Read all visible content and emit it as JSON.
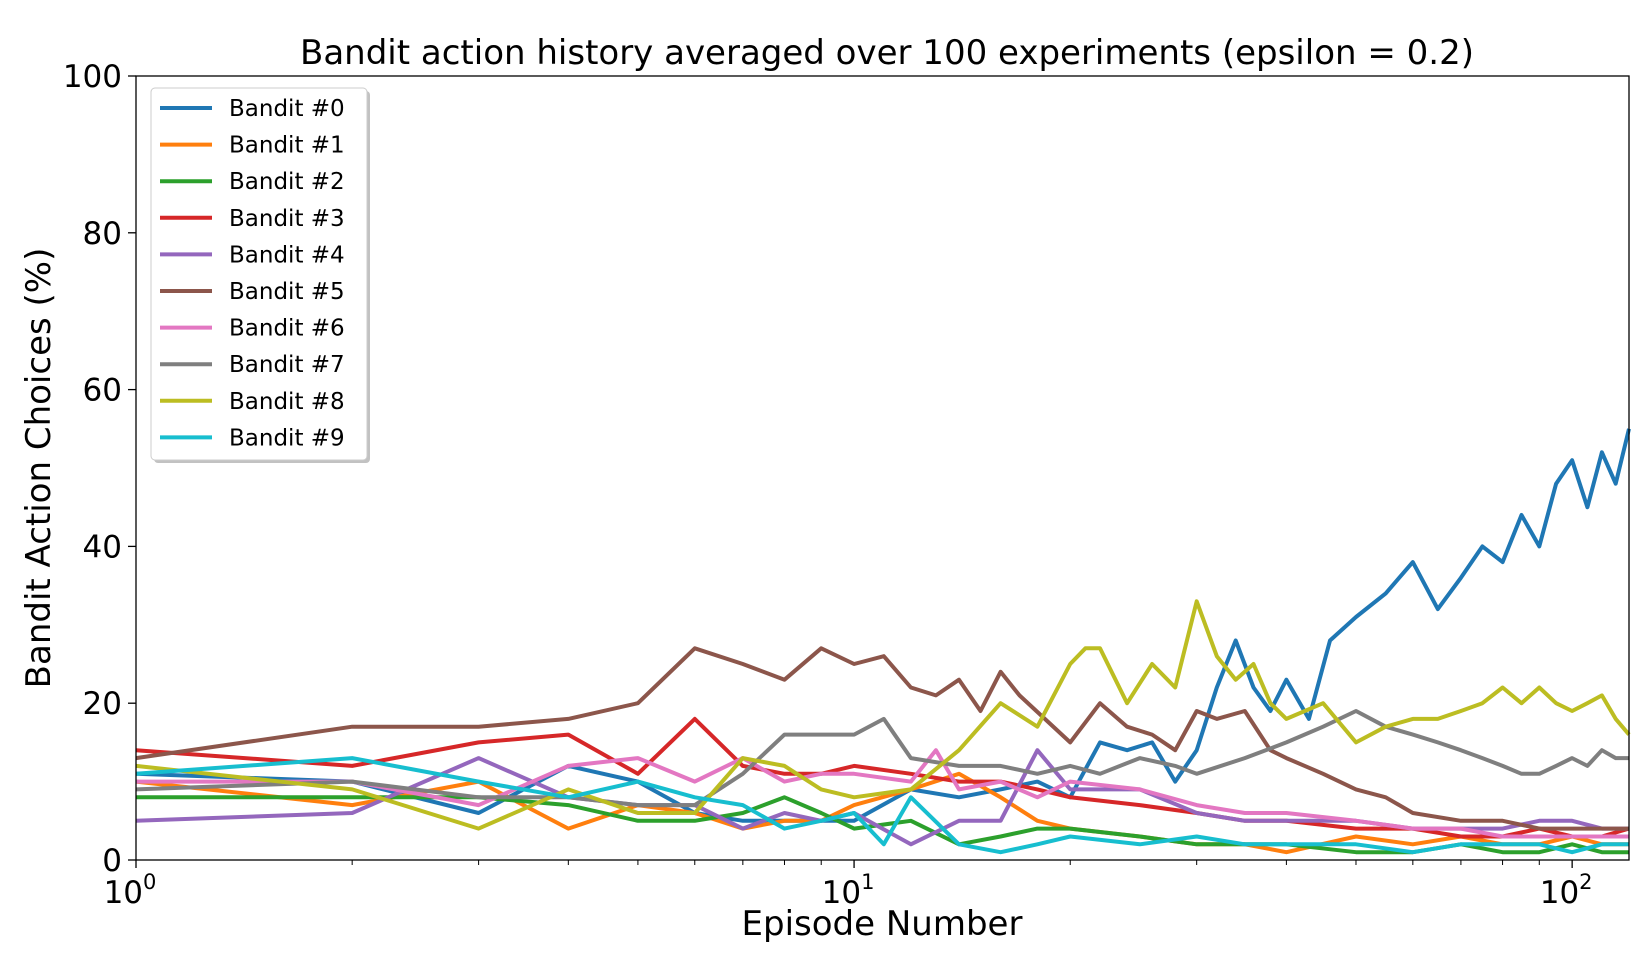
{
  "chart_data": {
    "type": "line",
    "title": "Bandit action history averaged over 100 experiments (epsilon = 0.2)",
    "xlabel": "Episode Number",
    "ylabel": "Bandit Action Choices (%)",
    "xscale": "log",
    "xlim": [
      1,
      120
    ],
    "ylim": [
      0,
      100
    ],
    "yticks": [
      0,
      20,
      40,
      60,
      80,
      100
    ],
    "xticks": [
      {
        "value": 1,
        "base": "10",
        "exp": "0"
      },
      {
        "value": 10,
        "base": "10",
        "exp": "1"
      },
      {
        "value": 100,
        "base": "10",
        "exp": "2"
      }
    ],
    "grid": false,
    "legend_position": "top-left",
    "series": [
      {
        "name": "Bandit #0",
        "color": "#1f77b4",
        "points": [
          [
            1,
            11
          ],
          [
            2,
            10
          ],
          [
            3,
            6
          ],
          [
            4,
            12
          ],
          [
            5,
            10
          ],
          [
            6,
            6
          ],
          [
            7,
            5
          ],
          [
            8,
            5
          ],
          [
            9,
            5
          ],
          [
            10,
            5
          ],
          [
            12,
            9
          ],
          [
            14,
            8
          ],
          [
            16,
            9
          ],
          [
            18,
            10
          ],
          [
            20,
            8
          ],
          [
            22,
            15
          ],
          [
            24,
            14
          ],
          [
            26,
            15
          ],
          [
            28,
            10
          ],
          [
            30,
            14
          ],
          [
            32,
            22
          ],
          [
            34,
            28
          ],
          [
            36,
            22
          ],
          [
            38,
            19
          ],
          [
            40,
            23
          ],
          [
            43,
            18
          ],
          [
            46,
            28
          ],
          [
            50,
            31
          ],
          [
            55,
            34
          ],
          [
            60,
            38
          ],
          [
            65,
            32
          ],
          [
            70,
            36
          ],
          [
            75,
            40
          ],
          [
            80,
            38
          ],
          [
            85,
            44
          ],
          [
            90,
            40
          ],
          [
            95,
            48
          ],
          [
            100,
            51
          ],
          [
            105,
            45
          ],
          [
            110,
            52
          ],
          [
            115,
            48
          ],
          [
            120,
            55
          ]
        ]
      },
      {
        "name": "Bandit #1",
        "color": "#ff7f0e",
        "points": [
          [
            1,
            10
          ],
          [
            2,
            7
          ],
          [
            3,
            10
          ],
          [
            4,
            4
          ],
          [
            5,
            7
          ],
          [
            6,
            6
          ],
          [
            7,
            4
          ],
          [
            8,
            5
          ],
          [
            9,
            5
          ],
          [
            10,
            7
          ],
          [
            12,
            9
          ],
          [
            14,
            11
          ],
          [
            16,
            8
          ],
          [
            18,
            5
          ],
          [
            20,
            4
          ],
          [
            25,
            3
          ],
          [
            30,
            2
          ],
          [
            35,
            2
          ],
          [
            40,
            1
          ],
          [
            50,
            3
          ],
          [
            60,
            2
          ],
          [
            70,
            3
          ],
          [
            80,
            2
          ],
          [
            90,
            2
          ],
          [
            100,
            3
          ],
          [
            110,
            2
          ],
          [
            120,
            2
          ]
        ]
      },
      {
        "name": "Bandit #2",
        "color": "#2ca02c",
        "points": [
          [
            1,
            8
          ],
          [
            2,
            8
          ],
          [
            3,
            8
          ],
          [
            4,
            7
          ],
          [
            5,
            5
          ],
          [
            6,
            5
          ],
          [
            7,
            6
          ],
          [
            8,
            8
          ],
          [
            9,
            6
          ],
          [
            10,
            4
          ],
          [
            12,
            5
          ],
          [
            14,
            2
          ],
          [
            16,
            3
          ],
          [
            18,
            4
          ],
          [
            20,
            4
          ],
          [
            25,
            3
          ],
          [
            30,
            2
          ],
          [
            35,
            2
          ],
          [
            40,
            2
          ],
          [
            50,
            1
          ],
          [
            60,
            1
          ],
          [
            70,
            2
          ],
          [
            80,
            1
          ],
          [
            90,
            1
          ],
          [
            100,
            2
          ],
          [
            110,
            1
          ],
          [
            120,
            1
          ]
        ]
      },
      {
        "name": "Bandit #3",
        "color": "#d62728",
        "points": [
          [
            1,
            14
          ],
          [
            2,
            12
          ],
          [
            3,
            15
          ],
          [
            4,
            16
          ],
          [
            5,
            11
          ],
          [
            6,
            18
          ],
          [
            7,
            12
          ],
          [
            8,
            11
          ],
          [
            9,
            11
          ],
          [
            10,
            12
          ],
          [
            12,
            11
          ],
          [
            14,
            10
          ],
          [
            16,
            10
          ],
          [
            18,
            9
          ],
          [
            20,
            8
          ],
          [
            25,
            7
          ],
          [
            30,
            6
          ],
          [
            35,
            5
          ],
          [
            40,
            5
          ],
          [
            50,
            4
          ],
          [
            60,
            4
          ],
          [
            70,
            3
          ],
          [
            80,
            3
          ],
          [
            90,
            4
          ],
          [
            100,
            3
          ],
          [
            110,
            3
          ],
          [
            120,
            4
          ]
        ]
      },
      {
        "name": "Bandit #4",
        "color": "#9467bd",
        "points": [
          [
            1,
            5
          ],
          [
            2,
            6
          ],
          [
            3,
            13
          ],
          [
            4,
            8
          ],
          [
            5,
            7
          ],
          [
            6,
            7
          ],
          [
            7,
            4
          ],
          [
            8,
            6
          ],
          [
            9,
            5
          ],
          [
            10,
            6
          ],
          [
            12,
            2
          ],
          [
            14,
            5
          ],
          [
            16,
            5
          ],
          [
            18,
            14
          ],
          [
            20,
            9
          ],
          [
            25,
            9
          ],
          [
            30,
            6
          ],
          [
            35,
            5
          ],
          [
            40,
            5
          ],
          [
            50,
            5
          ],
          [
            60,
            4
          ],
          [
            70,
            4
          ],
          [
            80,
            4
          ],
          [
            90,
            5
          ],
          [
            100,
            5
          ],
          [
            110,
            4
          ],
          [
            120,
            4
          ]
        ]
      },
      {
        "name": "Bandit #5",
        "color": "#8c564b",
        "points": [
          [
            1,
            13
          ],
          [
            2,
            17
          ],
          [
            3,
            17
          ],
          [
            4,
            18
          ],
          [
            5,
            20
          ],
          [
            6,
            27
          ],
          [
            7,
            25
          ],
          [
            8,
            23
          ],
          [
            9,
            27
          ],
          [
            10,
            25
          ],
          [
            11,
            26
          ],
          [
            12,
            22
          ],
          [
            13,
            21
          ],
          [
            14,
            23
          ],
          [
            15,
            19
          ],
          [
            16,
            24
          ],
          [
            17,
            21
          ],
          [
            20,
            15
          ],
          [
            22,
            20
          ],
          [
            24,
            17
          ],
          [
            26,
            16
          ],
          [
            28,
            14
          ],
          [
            30,
            19
          ],
          [
            32,
            18
          ],
          [
            35,
            19
          ],
          [
            38,
            14
          ],
          [
            40,
            13
          ],
          [
            45,
            11
          ],
          [
            50,
            9
          ],
          [
            55,
            8
          ],
          [
            60,
            6
          ],
          [
            70,
            5
          ],
          [
            80,
            5
          ],
          [
            90,
            4
          ],
          [
            100,
            4
          ],
          [
            110,
            4
          ],
          [
            120,
            4
          ]
        ]
      },
      {
        "name": "Bandit #6",
        "color": "#e377c2",
        "points": [
          [
            1,
            10
          ],
          [
            2,
            10
          ],
          [
            3,
            7
          ],
          [
            4,
            12
          ],
          [
            5,
            13
          ],
          [
            6,
            10
          ],
          [
            7,
            13
          ],
          [
            8,
            10
          ],
          [
            9,
            11
          ],
          [
            10,
            11
          ],
          [
            12,
            10
          ],
          [
            13,
            14
          ],
          [
            14,
            9
          ],
          [
            16,
            10
          ],
          [
            18,
            8
          ],
          [
            20,
            10
          ],
          [
            25,
            9
          ],
          [
            30,
            7
          ],
          [
            35,
            6
          ],
          [
            40,
            6
          ],
          [
            50,
            5
          ],
          [
            60,
            4
          ],
          [
            70,
            4
          ],
          [
            80,
            3
          ],
          [
            90,
            3
          ],
          [
            100,
            3
          ],
          [
            110,
            3
          ],
          [
            120,
            3
          ]
        ]
      },
      {
        "name": "Bandit #7",
        "color": "#7f7f7f",
        "points": [
          [
            1,
            9
          ],
          [
            2,
            10
          ],
          [
            3,
            8
          ],
          [
            4,
            8
          ],
          [
            5,
            7
          ],
          [
            6,
            7
          ],
          [
            7,
            11
          ],
          [
            8,
            16
          ],
          [
            9,
            16
          ],
          [
            10,
            16
          ],
          [
            11,
            18
          ],
          [
            12,
            13
          ],
          [
            14,
            12
          ],
          [
            16,
            12
          ],
          [
            18,
            11
          ],
          [
            20,
            12
          ],
          [
            22,
            11
          ],
          [
            25,
            13
          ],
          [
            28,
            12
          ],
          [
            30,
            11
          ],
          [
            35,
            13
          ],
          [
            40,
            15
          ],
          [
            45,
            17
          ],
          [
            50,
            19
          ],
          [
            55,
            17
          ],
          [
            60,
            16
          ],
          [
            65,
            15
          ],
          [
            70,
            14
          ],
          [
            75,
            13
          ],
          [
            80,
            12
          ],
          [
            85,
            11
          ],
          [
            90,
            11
          ],
          [
            95,
            12
          ],
          [
            100,
            13
          ],
          [
            105,
            12
          ],
          [
            110,
            14
          ],
          [
            115,
            13
          ],
          [
            120,
            13
          ]
        ]
      },
      {
        "name": "Bandit #8",
        "color": "#bcbd22",
        "points": [
          [
            1,
            12
          ],
          [
            2,
            9
          ],
          [
            3,
            4
          ],
          [
            4,
            9
          ],
          [
            5,
            6
          ],
          [
            6,
            6
          ],
          [
            7,
            13
          ],
          [
            8,
            12
          ],
          [
            9,
            9
          ],
          [
            10,
            8
          ],
          [
            12,
            9
          ],
          [
            14,
            14
          ],
          [
            16,
            20
          ],
          [
            18,
            17
          ],
          [
            20,
            25
          ],
          [
            21,
            27
          ],
          [
            22,
            27
          ],
          [
            24,
            20
          ],
          [
            26,
            25
          ],
          [
            28,
            22
          ],
          [
            30,
            33
          ],
          [
            32,
            26
          ],
          [
            34,
            23
          ],
          [
            36,
            25
          ],
          [
            38,
            20
          ],
          [
            40,
            18
          ],
          [
            45,
            20
          ],
          [
            50,
            15
          ],
          [
            55,
            17
          ],
          [
            60,
            18
          ],
          [
            65,
            18
          ],
          [
            70,
            19
          ],
          [
            75,
            20
          ],
          [
            80,
            22
          ],
          [
            85,
            20
          ],
          [
            90,
            22
          ],
          [
            95,
            20
          ],
          [
            100,
            19
          ],
          [
            105,
            20
          ],
          [
            110,
            21
          ],
          [
            115,
            18
          ],
          [
            120,
            16
          ]
        ]
      },
      {
        "name": "Bandit #9",
        "color": "#17becf",
        "points": [
          [
            1,
            11
          ],
          [
            2,
            13
          ],
          [
            3,
            10
          ],
          [
            4,
            8
          ],
          [
            5,
            10
          ],
          [
            6,
            8
          ],
          [
            7,
            7
          ],
          [
            8,
            4
          ],
          [
            9,
            5
          ],
          [
            10,
            6
          ],
          [
            11,
            2
          ],
          [
            12,
            8
          ],
          [
            14,
            2
          ],
          [
            16,
            1
          ],
          [
            18,
            2
          ],
          [
            20,
            3
          ],
          [
            25,
            2
          ],
          [
            30,
            3
          ],
          [
            35,
            2
          ],
          [
            40,
            2
          ],
          [
            50,
            2
          ],
          [
            60,
            1
          ],
          [
            70,
            2
          ],
          [
            80,
            2
          ],
          [
            90,
            2
          ],
          [
            100,
            1
          ],
          [
            110,
            2
          ],
          [
            120,
            2
          ]
        ]
      }
    ]
  }
}
